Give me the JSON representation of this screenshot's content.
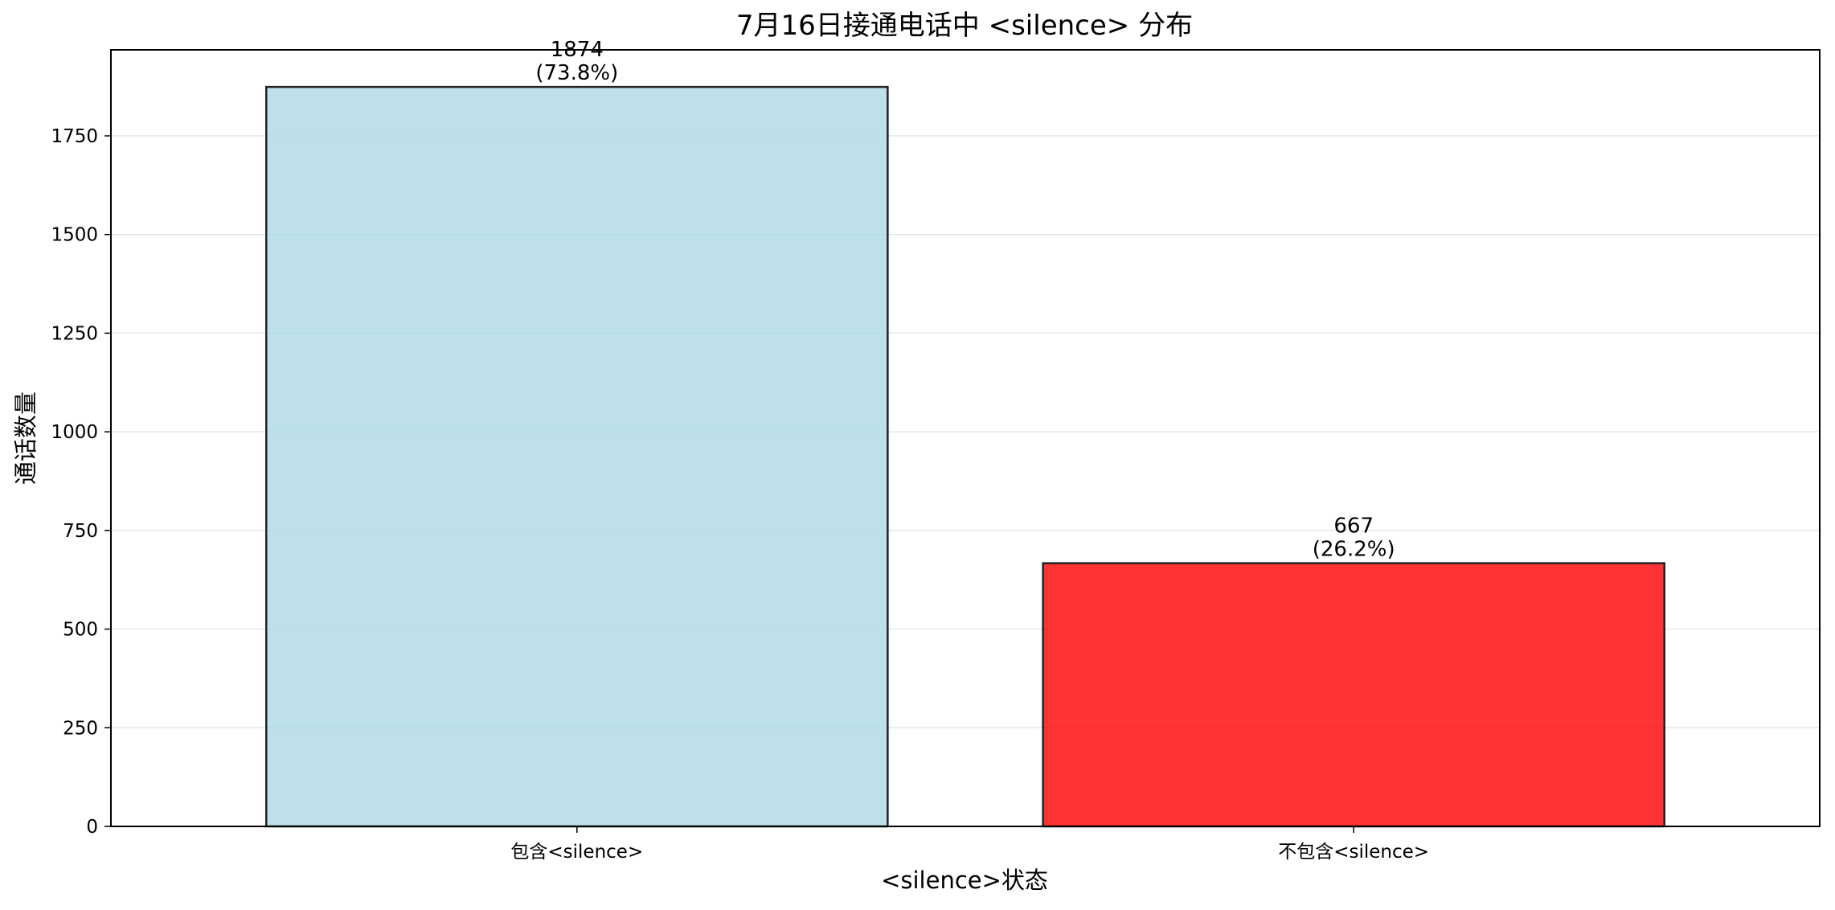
{
  "chart_data": {
    "type": "bar",
    "title": "7月16日接通电话中 <silence> 分布",
    "xlabel": "<silence>状态",
    "ylabel": "通话数量",
    "categories": [
      "包含<silence>",
      "不包含<silence>"
    ],
    "values": [
      1874,
      667
    ],
    "percent_labels": [
      "(73.8%)",
      "(26.2%)"
    ],
    "colors": [
      "#add8e6",
      "#ff0000"
    ],
    "ylim": [
      0,
      1968
    ],
    "yticks": [
      0,
      250,
      500,
      750,
      1000,
      1250,
      1500,
      1750
    ],
    "grid": "horizontal",
    "legend": "none"
  }
}
